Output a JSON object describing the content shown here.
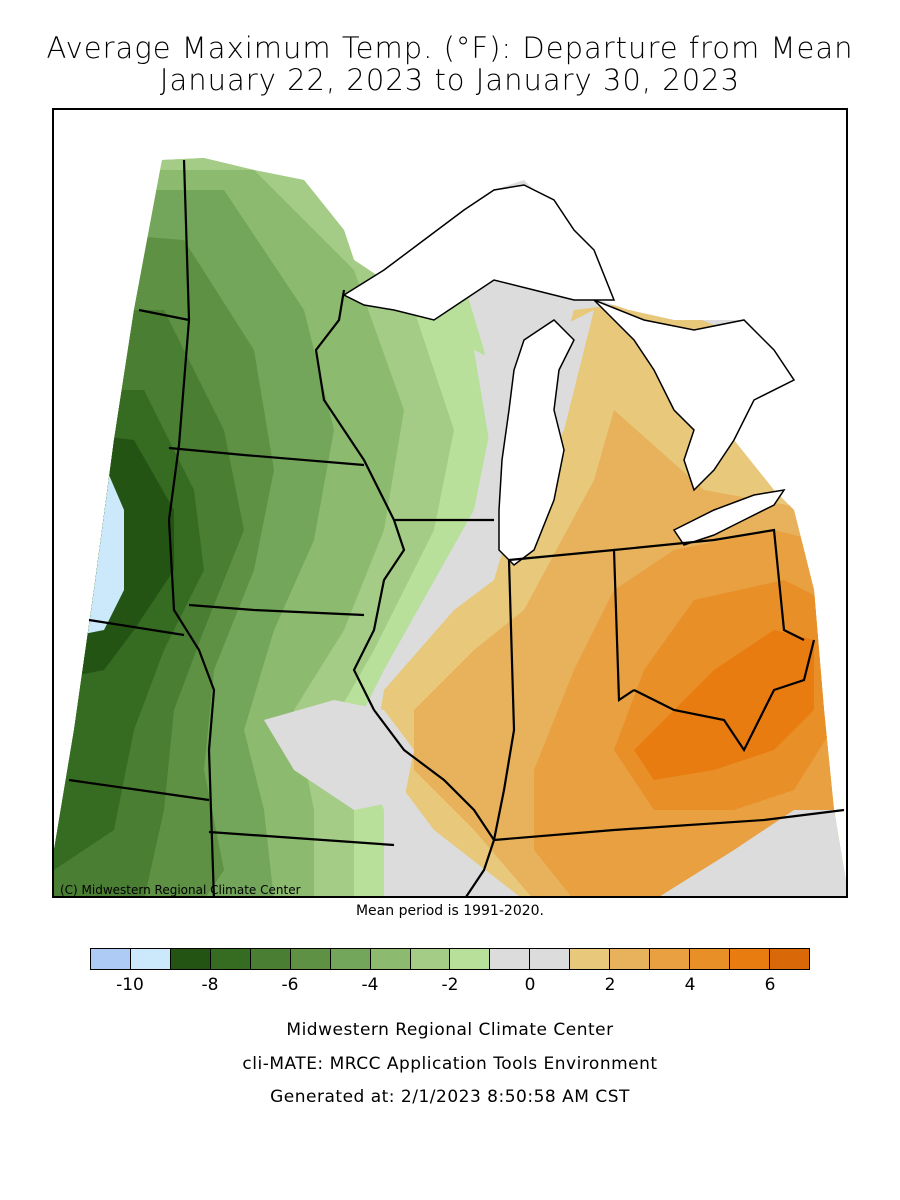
{
  "title_line1": "Average Maximum Temp. (°F): Departure from Mean",
  "title_line2": "January 22, 2023 to January 30, 2023",
  "copyright": "(C) Midwestern Regional Climate Center",
  "mean_period": "Mean period is 1991-2020.",
  "legend": {
    "colors": [
      "#aecbf6",
      "#cce8fb",
      "#245414",
      "#366b22",
      "#4a7f33",
      "#5e9144",
      "#73a65a",
      "#8cba6e",
      "#a4cc86",
      "#b8e09a",
      "#dcdcdc",
      "#dcdcdc",
      "#e8c87a",
      "#e8b25c",
      "#e8a040",
      "#e88f28",
      "#e87c10",
      "#d86808"
    ],
    "ticks": [
      "-10",
      "-8",
      "-6",
      "-4",
      "-2",
      "0",
      "2",
      "4",
      "6"
    ]
  },
  "map": {
    "land_fill": "#dcdcdc",
    "water_fill": "#ffffff"
  },
  "footer": {
    "line1": "Midwestern Regional Climate Center",
    "line2": "cli-MATE: MRCC Application Tools Environment",
    "line3": "Generated at: 2/1/2023 8:50:58 AM CST"
  }
}
